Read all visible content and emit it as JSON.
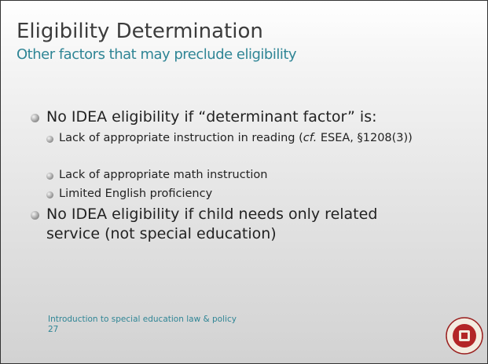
{
  "title": "Eligibility Determination",
  "subtitle": "Other factors that may preclude eligibility",
  "bullets": [
    {
      "text": "No IDEA eligibility if “determinant factor” is:",
      "sub": [
        {
          "before": "Lack of appropriate instruction in reading (",
          "em": "cf.",
          "after": " ESEA, §1208(3))"
        },
        {
          "text": "Lack of appropriate math instruction"
        },
        {
          "text": "Limited English proficiency"
        }
      ]
    },
    {
      "text": "No IDEA eligibility if child needs only related service (not special education)"
    }
  ],
  "footer": {
    "text": "Introduction to special education law & policy",
    "page": "27"
  }
}
